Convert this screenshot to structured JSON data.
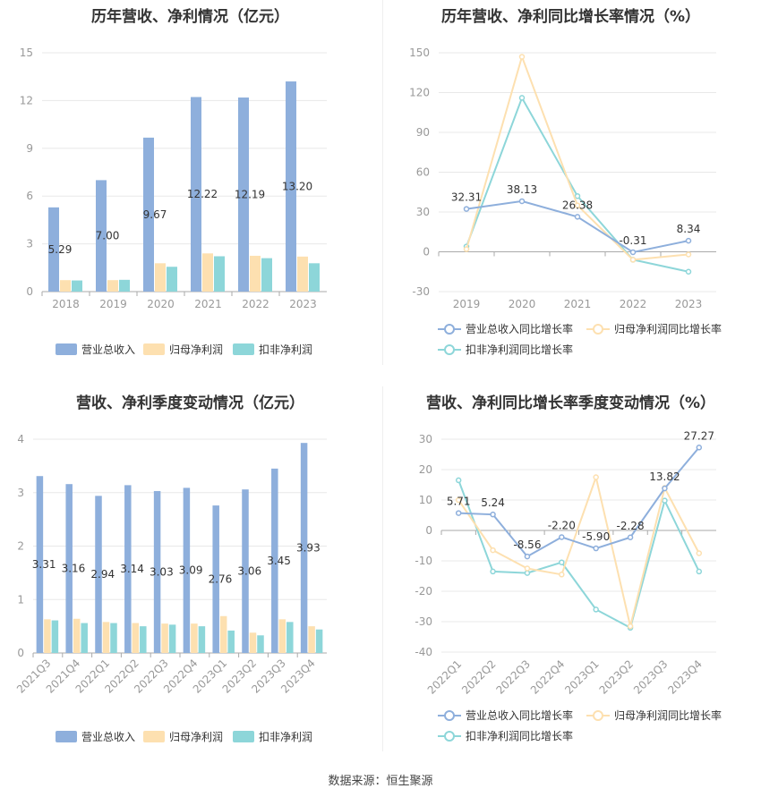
{
  "source": "数据来源：恒生聚源",
  "colors": {
    "revenue": "#8eafdc",
    "net_profit": "#fde0b0",
    "deducted_profit": "#8dd6d9",
    "grid": "#e8e8e8",
    "axis": "#999999"
  },
  "chart_data": [
    {
      "type": "bar",
      "title": "历年营收、净利情况（亿元）",
      "categories": [
        "2018",
        "2019",
        "2020",
        "2021",
        "2022",
        "2023"
      ],
      "ylim": [
        0,
        15
      ],
      "yticks": [
        0,
        3,
        6,
        9,
        12,
        15
      ],
      "series": [
        {
          "name": "营业总收入",
          "values": [
            5.29,
            7.0,
            9.67,
            12.22,
            12.19,
            13.2
          ],
          "labels": [
            "5.29",
            "7.00",
            "9.67",
            "12.22",
            "12.19",
            "13.20"
          ]
        },
        {
          "name": "归母净利润",
          "values": [
            0.72,
            0.72,
            1.78,
            2.4,
            2.25,
            2.2
          ]
        },
        {
          "name": "扣非净利润",
          "values": [
            0.7,
            0.74,
            1.56,
            2.22,
            2.1,
            1.78
          ]
        }
      ],
      "legend": "bottom"
    },
    {
      "type": "line",
      "title": "历年营收、净利同比增长率情况（%）",
      "categories": [
        "2019",
        "2020",
        "2021",
        "2022",
        "2023"
      ],
      "ylim": [
        -30,
        150
      ],
      "yticks": [
        -30,
        0,
        30,
        60,
        90,
        120,
        150
      ],
      "series": [
        {
          "name": "营业总收入同比增长率",
          "values": [
            32.31,
            38.13,
            26.38,
            -0.31,
            8.34
          ],
          "labels": [
            "32.31",
            "38.13",
            "26.38",
            "-0.31",
            "8.34"
          ]
        },
        {
          "name": "归母净利润同比增长率",
          "values": [
            2.0,
            147.0,
            35.0,
            -6.0,
            -2.0
          ]
        },
        {
          "name": "扣非净利润同比增长率",
          "values": [
            4.0,
            116.0,
            42.0,
            -6.0,
            -15.0
          ]
        }
      ],
      "legend": "bottom"
    },
    {
      "type": "bar",
      "title": "营收、净利季度变动情况（亿元）",
      "categories": [
        "2021Q3",
        "2021Q4",
        "2022Q1",
        "2022Q2",
        "2022Q3",
        "2022Q4",
        "2023Q1",
        "2023Q2",
        "2023Q3",
        "2023Q4"
      ],
      "ylim": [
        0,
        4
      ],
      "yticks": [
        0,
        1,
        2,
        3,
        4
      ],
      "series": [
        {
          "name": "营业总收入",
          "values": [
            3.31,
            3.16,
            2.94,
            3.14,
            3.03,
            3.09,
            2.76,
            3.06,
            3.45,
            3.93
          ],
          "labels": [
            "3.31",
            "3.16",
            "2.94",
            "3.14",
            "3.03",
            "3.09",
            "2.76",
            "3.06",
            "3.45",
            "3.93"
          ]
        },
        {
          "name": "归母净利润",
          "values": [
            0.63,
            0.64,
            0.58,
            0.56,
            0.55,
            0.55,
            0.69,
            0.38,
            0.63,
            0.5
          ]
        },
        {
          "name": "扣非净利润",
          "values": [
            0.61,
            0.56,
            0.56,
            0.5,
            0.53,
            0.5,
            0.42,
            0.33,
            0.58,
            0.44
          ]
        }
      ],
      "legend": "bottom"
    },
    {
      "type": "line",
      "title": "营收、净利同比增长率季度变动情况（%）",
      "categories": [
        "2022Q1",
        "2022Q2",
        "2022Q3",
        "2022Q4",
        "2023Q1",
        "2023Q2",
        "2023Q3",
        "2023Q4"
      ],
      "ylim": [
        -40,
        30
      ],
      "yticks": [
        -40,
        -30,
        -20,
        -10,
        0,
        10,
        20,
        30
      ],
      "series": [
        {
          "name": "营业总收入同比增长率",
          "values": [
            5.71,
            5.24,
            -8.56,
            -2.2,
            -5.9,
            -2.28,
            13.82,
            27.27
          ],
          "labels": [
            "5.71",
            "5.24",
            "-8.56",
            "-2.20",
            "-5.90",
            "-2.28",
            "13.82",
            "27.27"
          ]
        },
        {
          "name": "归母净利润同比增长率",
          "values": [
            10.0,
            -6.5,
            -12.5,
            -14.5,
            17.5,
            -31.5,
            14.0,
            -7.5
          ]
        },
        {
          "name": "扣非净利润同比增长率",
          "values": [
            16.5,
            -13.5,
            -14.0,
            -10.5,
            -26.0,
            -32.0,
            9.8,
            -13.5
          ]
        }
      ],
      "legend": "bottom"
    }
  ]
}
